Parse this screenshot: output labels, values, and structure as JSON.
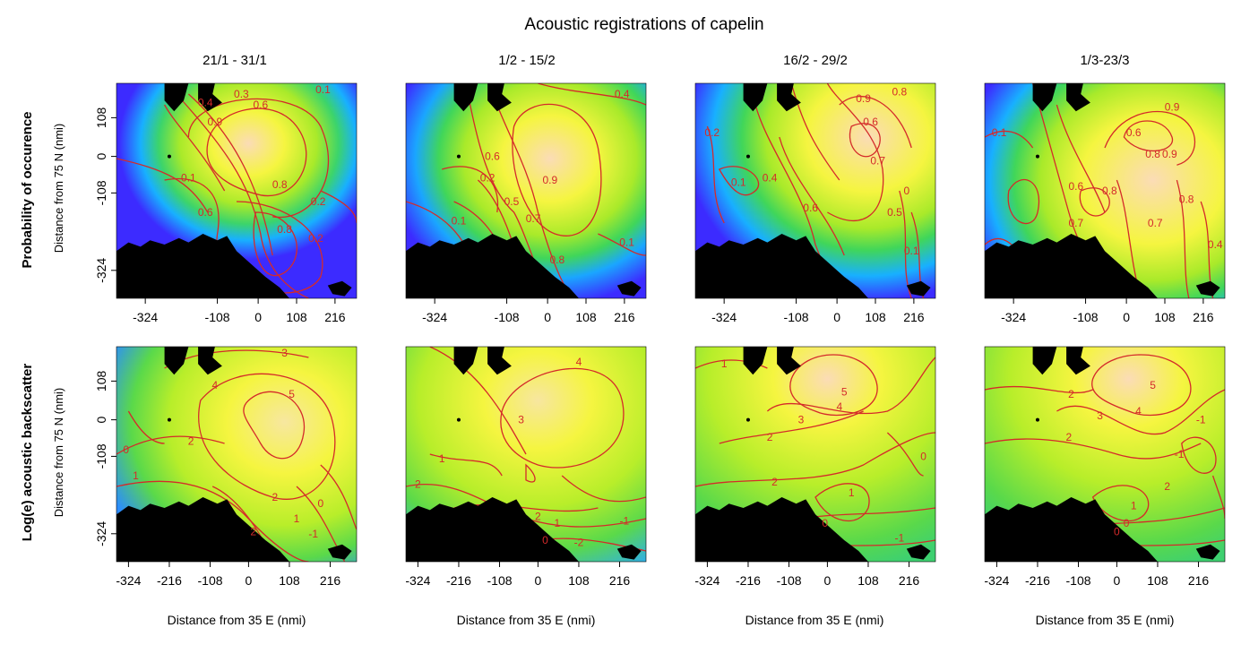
{
  "chart_data": {
    "type": "heatmap",
    "title": "Acoustic registrations of capelin",
    "columns": [
      "21/1 - 31/1",
      "1/2 - 15/2",
      "16/2 - 29/2",
      "1/3-23/3"
    ],
    "rows": [
      {
        "ylabel_main": "Probability of occurence",
        "ylabel_sub": "Distance from 75 N (nmi)",
        "yticks": [
          "108",
          "0",
          "-108",
          "-324"
        ],
        "xticks": [
          "-324",
          "-108",
          "0",
          "108",
          "216"
        ],
        "contour_labels": [
          [
            "0.1",
            "0.3",
            "0.4",
            "0.6",
            "0.9",
            "0.1",
            "0.8",
            "0.6",
            "0.8",
            "0.2",
            "0.2"
          ],
          [
            "0.4",
            "0.6",
            "0.2",
            "0.9",
            "0.1",
            "0.5",
            "0.7",
            "0.8",
            "0.1"
          ],
          [
            "0.2",
            "0.8",
            "0.9",
            "0.6",
            "0.1",
            "0.7",
            "0.4",
            "0.6",
            "0.5",
            "0.1",
            "0"
          ],
          [
            "0.1",
            "0.9",
            "0.6",
            "0.8",
            "0.6",
            "0.8",
            "0.7",
            "0.9",
            "0.8",
            "0.7",
            "0.4"
          ]
        ]
      },
      {
        "ylabel_main": "Log(e) acoustic backscatter",
        "ylabel_sub": "Distance from 75 N (nmi)",
        "yticks": [
          "108",
          "0",
          "-108",
          "-324"
        ],
        "xticks": [
          "-324",
          "-216",
          "-108",
          "0",
          "108",
          "216"
        ],
        "contour_labels": [
          [
            "3",
            "4",
            "5",
            "2",
            "0",
            "1",
            "2",
            "2",
            "1",
            "0",
            "-1"
          ],
          [
            "4",
            "3",
            "1",
            "2",
            "2",
            "1",
            "0",
            "-1",
            "-2"
          ],
          [
            "1",
            "5",
            "4",
            "3",
            "2",
            "2",
            "1",
            "0",
            "0",
            "-1"
          ],
          [
            "2",
            "5",
            "4",
            "3",
            "2",
            "0",
            "-1",
            "2",
            "1",
            "0",
            "-1"
          ]
        ]
      }
    ],
    "xlabel": "Distance from 35 E (nmi)",
    "colors": {
      "low": "#3c2bff",
      "mid_low": "#18b0ff",
      "mid": "#7ce829",
      "high": "#f5f540",
      "max": "#fbdcb6",
      "contour": "#d42a2a",
      "land": "#000000"
    }
  }
}
